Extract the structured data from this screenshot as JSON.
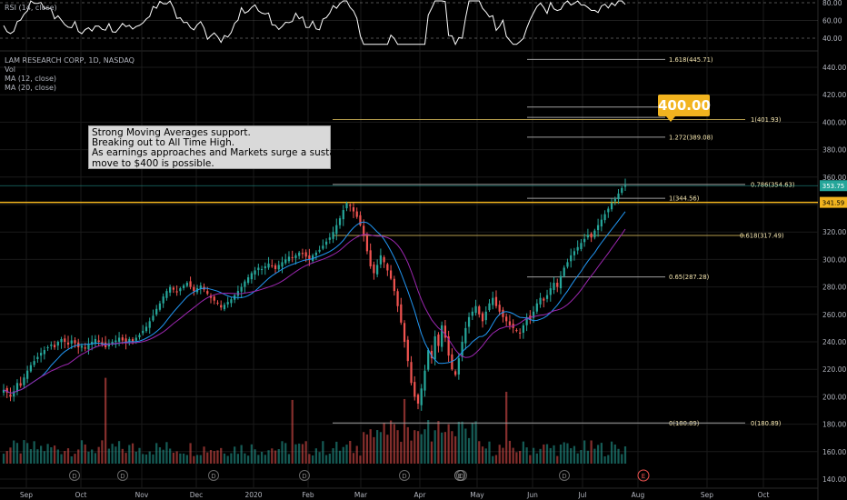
{
  "colors": {
    "background": "#000000",
    "text": "#b2b5be",
    "grid": "#1a1a1a",
    "up": "#26a69a",
    "down": "#ef5350",
    "ma12": "#2196f3",
    "ma20": "#9c27b0",
    "rsi": "#ffffff",
    "fib_line": "#9e9e9e",
    "fib_label": "#f5e6b0",
    "accent": "#f2b41f",
    "price_tag_green": "#26a69a",
    "price_tag_orange": "#f2b41f"
  },
  "legend": {
    "symbol": "LAM RESEARCH CORP, 1D, NASDAQ",
    "vol": "Vol",
    "ma12": "MA (12, close)",
    "ma20": "MA (20, close)"
  },
  "rsi_panel": {
    "label": "RSI (14, close)",
    "ticks": [
      "80.00",
      "60.00",
      "40.00"
    ]
  },
  "callout": {
    "lines": [
      "Strong Moving Averages support.",
      "Breaking out to All Time High.",
      "As earnings approaches and Markets surge a sustained",
      "move to $400 is possible."
    ]
  },
  "target_badge": "400.00",
  "price_tags": {
    "last": "353.75",
    "resistance": "341.59"
  },
  "event_markers": {
    "dividend": "D",
    "earnings": "E"
  },
  "chart_data": {
    "type": "candlestick",
    "title": "LAM RESEARCH CORP, 1D, NASDAQ",
    "x_axis": {
      "labels": [
        "Sep",
        "Oct",
        "Nov",
        "Dec",
        "2020",
        "Feb",
        "Mar",
        "Apr",
        "May",
        "Jun",
        "Jul",
        "Aug",
        "Sep",
        "Oct"
      ]
    },
    "y_axis": {
      "range": [
        130,
        460
      ],
      "ticks": [
        "440.00",
        "420.00",
        "400.00",
        "380.00",
        "360.00",
        "340.00",
        "320.00",
        "300.00",
        "280.00",
        "260.00",
        "240.00",
        "220.00",
        "200.00",
        "180.00",
        "160.00",
        "140.00"
      ]
    },
    "fibonacci_levels": [
      {
        "label": "1.618(445.71)",
        "price": 445.71
      },
      {
        "label": "1(401.93)",
        "price": 401.93
      },
      {
        "label": "1.272(389.08)",
        "price": 389.08
      },
      {
        "label": "0.786(354.63)",
        "price": 354.63
      },
      {
        "label": "1(344.56)",
        "price": 344.56
      },
      {
        "label": "0.618(317.49)",
        "price": 317.49
      },
      {
        "label": "0.65(287.28)",
        "price": 287.28
      },
      {
        "label": "0(180.89)",
        "price": 180.89
      },
      {
        "label": "0(180.89)",
        "price": 180.89
      }
    ],
    "horizontal_lines": [
      {
        "name": "resistance",
        "price": 341.59
      },
      {
        "name": "last_price",
        "price": 353.75
      }
    ],
    "closes": [
      205,
      203,
      200,
      204,
      210,
      208,
      214,
      219,
      223,
      226,
      229,
      232,
      234,
      236,
      238,
      236,
      240,
      242,
      240,
      238,
      241,
      239,
      236,
      237,
      235,
      238,
      240,
      242,
      240,
      238,
      236,
      239,
      240,
      241,
      243,
      241,
      239,
      242,
      240,
      243,
      245,
      248,
      251,
      255,
      259,
      264,
      268,
      273,
      277,
      280,
      278,
      276,
      279,
      281,
      283,
      280,
      277,
      279,
      281,
      278,
      275,
      272,
      270,
      268,
      265,
      267,
      269,
      271,
      274,
      277,
      280,
      284,
      287,
      290,
      292,
      294,
      293,
      295,
      297,
      295,
      293,
      296,
      298,
      300,
      302,
      301,
      303,
      305,
      304,
      302,
      300,
      303,
      305,
      307,
      310,
      313,
      316,
      320,
      325,
      330,
      336,
      341,
      339,
      335,
      331,
      325,
      317,
      306,
      295,
      290,
      296,
      303,
      298,
      292,
      286,
      277,
      266,
      254,
      240,
      226,
      210,
      200,
      195,
      206,
      219,
      234,
      228,
      244,
      237,
      252,
      243,
      230,
      220,
      216,
      228,
      240,
      250,
      258,
      262,
      266,
      260,
      255,
      262,
      268,
      272,
      266,
      262,
      258,
      255,
      252,
      250,
      248,
      246,
      252,
      258,
      256,
      262,
      268,
      272,
      270,
      274,
      279,
      283,
      280,
      288,
      294,
      298,
      303,
      306,
      309,
      312,
      315,
      318,
      316,
      321,
      325,
      329,
      333,
      337,
      341,
      344,
      348,
      352,
      354
    ]
  }
}
